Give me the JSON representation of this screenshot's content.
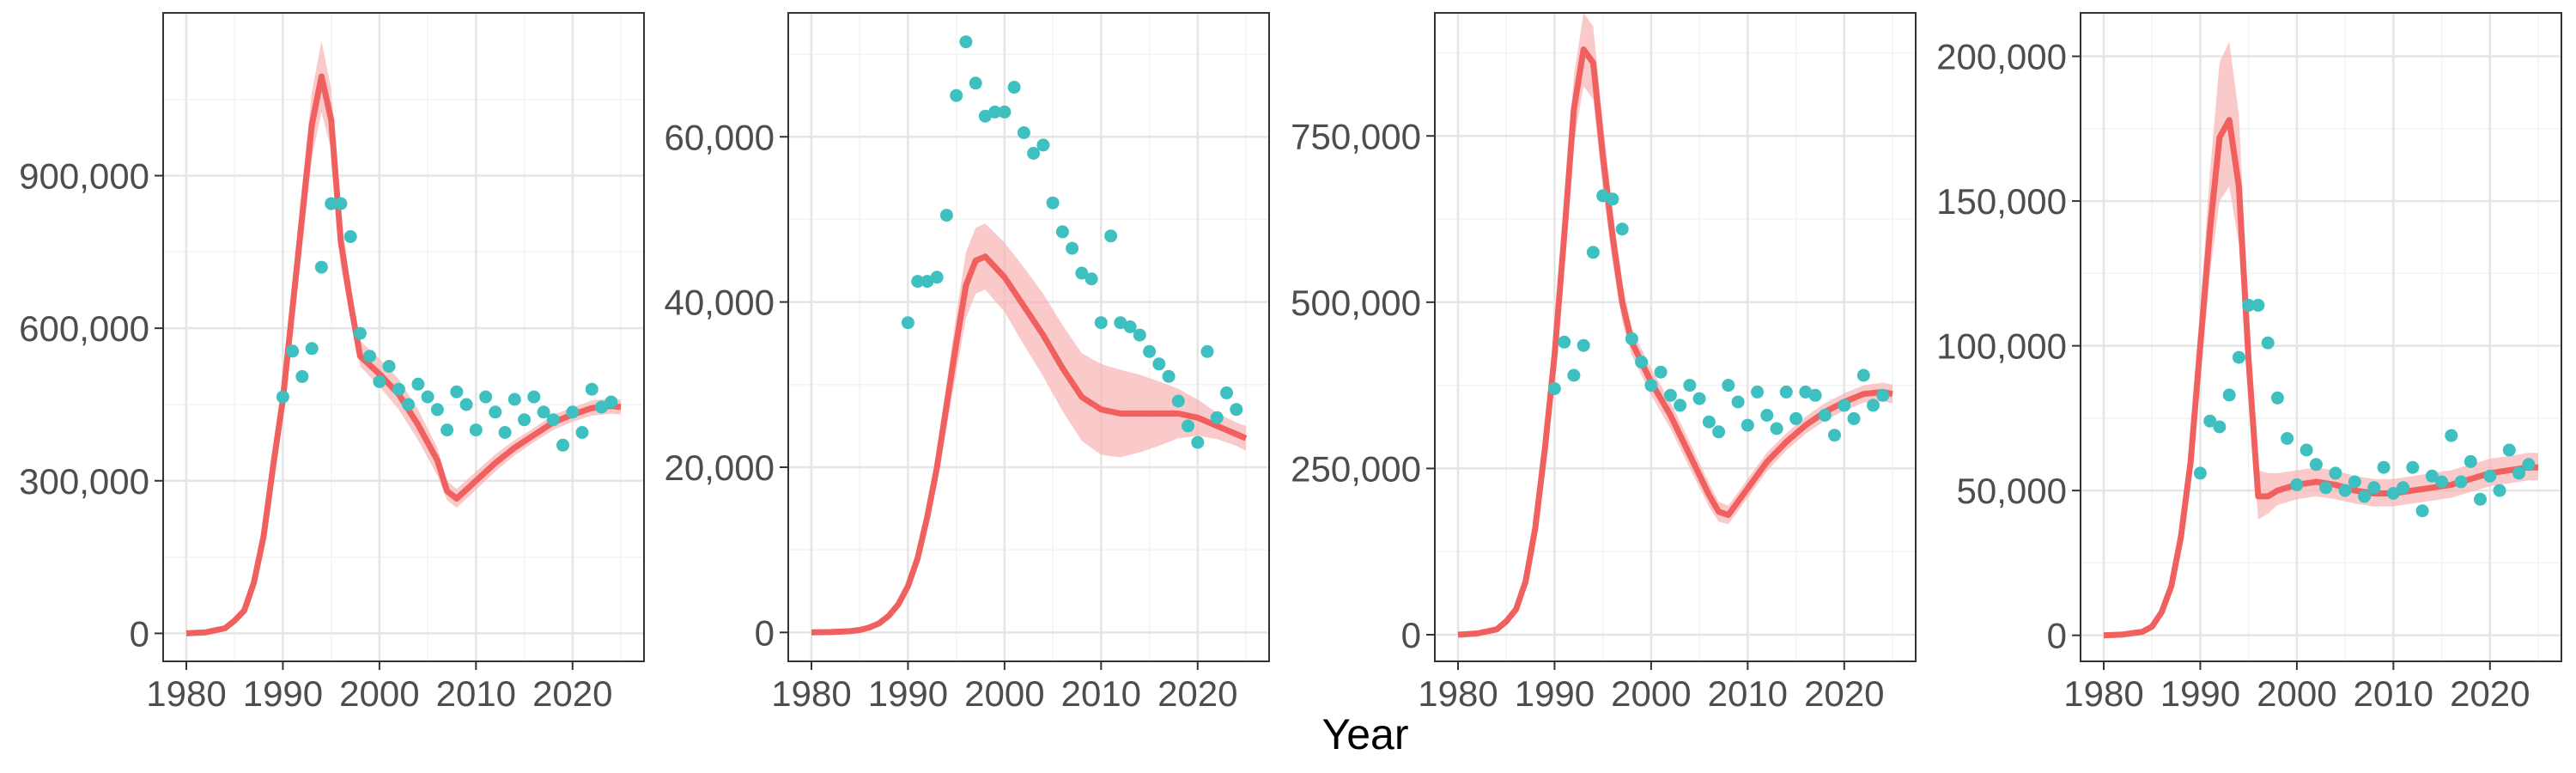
{
  "figure": {
    "xlabel": "Year"
  },
  "colors": {
    "model": "#F0605E",
    "band": "#F8B3B3",
    "observed": "#3EBFC0",
    "grid_major": "#E5E5E5",
    "grid_minor": "#F3F3F3",
    "frame": "#333333"
  },
  "chart_data": [
    {
      "type": "line",
      "xlim": [
        1977.6,
        2027.4
      ],
      "ylim": [
        -55000,
        1220000
      ],
      "xticks": [
        1980,
        1990,
        2000,
        2010,
        2020
      ],
      "yticks": [
        0,
        300000,
        600000,
        900000
      ],
      "ytick_labels": [
        "0",
        "300,000",
        "600,000",
        "900,000"
      ],
      "model": {
        "x": [
          1980,
          1982,
          1984,
          1985,
          1986,
          1987,
          1988,
          1989,
          1990,
          1991,
          1992,
          1993,
          1994,
          1995,
          1996,
          1997,
          1998,
          2000,
          2002,
          2004,
          2006,
          2007,
          2008,
          2010,
          2012,
          2014,
          2016,
          2018,
          2020,
          2022,
          2024,
          2025
        ],
        "y": [
          0,
          2000,
          10000,
          25000,
          45000,
          100000,
          190000,
          330000,
          460000,
          640000,
          820000,
          1000000,
          1095000,
          1010000,
          770000,
          650000,
          545000,
          510000,
          470000,
          410000,
          340000,
          280000,
          265000,
          300000,
          335000,
          365000,
          390000,
          415000,
          430000,
          443000,
          447000,
          445000
        ],
        "lower": [
          0,
          1800,
          9000,
          22000,
          40000,
          90000,
          172000,
          300000,
          420000,
          590000,
          760000,
          935000,
          1025000,
          950000,
          720000,
          620000,
          525000,
          485000,
          440000,
          380000,
          310000,
          262000,
          247000,
          282000,
          318000,
          350000,
          376000,
          400000,
          416000,
          428000,
          432000,
          430000
        ],
        "upper": [
          0,
          2200,
          11000,
          28000,
          50000,
          110000,
          208000,
          360000,
          500000,
          690000,
          880000,
          1065000,
          1165000,
          1070000,
          820000,
          685000,
          575000,
          540000,
          500000,
          440000,
          365000,
          300000,
          284000,
          318000,
          352000,
          380000,
          404000,
          430000,
          444000,
          458000,
          462000,
          460000
        ]
      },
      "observed": {
        "x": [
          1990,
          1991,
          1992,
          1993,
          1994,
          1995,
          1996,
          1997,
          1998,
          1999,
          2000,
          2001,
          2002,
          2003,
          2004,
          2005,
          2006,
          2007,
          2008,
          2009,
          2010,
          2011,
          2012,
          2013,
          2014,
          2015,
          2016,
          2017,
          2018,
          2019,
          2020,
          2021,
          2022,
          2023,
          2024
        ],
        "y": [
          465000,
          555000,
          505000,
          560000,
          720000,
          845000,
          845000,
          780000,
          590000,
          545000,
          495000,
          525000,
          480000,
          450000,
          490000,
          465000,
          440000,
          400000,
          475000,
          450000,
          400000,
          465000,
          435000,
          395000,
          460000,
          420000,
          465000,
          435000,
          420000,
          370000,
          435000,
          395000,
          480000,
          445000,
          455000
        ]
      }
    },
    {
      "type": "line",
      "xlim": [
        1977.6,
        2027.4
      ],
      "ylim": [
        -3500,
        75000
      ],
      "xticks": [
        1980,
        1990,
        2000,
        2010,
        2020
      ],
      "yticks": [
        0,
        20000,
        40000,
        60000
      ],
      "ytick_labels": [
        "0",
        "20,000",
        "40,000",
        "60,000"
      ],
      "model": {
        "x": [
          1980,
          1982,
          1984,
          1985,
          1986,
          1987,
          1988,
          1989,
          1990,
          1991,
          1992,
          1993,
          1994,
          1995,
          1996,
          1997,
          1998,
          2000,
          2002,
          2004,
          2006,
          2008,
          2010,
          2012,
          2014,
          2016,
          2018,
          2020,
          2022,
          2024,
          2025
        ],
        "y": [
          0,
          50,
          150,
          300,
          600,
          1100,
          2000,
          3400,
          5600,
          9000,
          14000,
          20000,
          27500,
          35000,
          42000,
          45000,
          45500,
          43000,
          39500,
          36000,
          32000,
          28500,
          27000,
          26500,
          26500,
          26500,
          26500,
          26000,
          25000,
          24000,
          23500
        ],
        "lower": [
          0,
          40,
          120,
          250,
          500,
          950,
          1750,
          3000,
          5000,
          8100,
          12600,
          18000,
          24800,
          31500,
          38000,
          41000,
          41500,
          38800,
          34800,
          31000,
          26800,
          23200,
          21500,
          21200,
          21800,
          22600,
          23500,
          23800,
          23400,
          22600,
          22000
        ],
        "upper": [
          0,
          60,
          180,
          350,
          700,
          1250,
          2250,
          3800,
          6200,
          9900,
          15400,
          22000,
          30200,
          38500,
          46000,
          49000,
          49500,
          47200,
          44200,
          41000,
          37200,
          33800,
          32500,
          31800,
          31200,
          30400,
          29500,
          28200,
          26600,
          25400,
          25000
        ]
      },
      "observed": {
        "x": [
          1990,
          1991,
          1992,
          1993,
          1994,
          1995,
          1996,
          1997,
          1998,
          1999,
          2000,
          2001,
          2002,
          2003,
          2004,
          2005,
          2006,
          2007,
          2008,
          2009,
          2010,
          2011,
          2012,
          2013,
          2014,
          2015,
          2016,
          2017,
          2018,
          2019,
          2020,
          2021,
          2022,
          2023,
          2024
        ],
        "y": [
          37500,
          42500,
          42500,
          43000,
          50500,
          65000,
          71500,
          66500,
          62500,
          63000,
          63000,
          66000,
          60500,
          58000,
          59000,
          52000,
          48500,
          46500,
          43500,
          42800,
          37500,
          48000,
          37500,
          37000,
          36000,
          34000,
          32500,
          31000,
          28000,
          25000,
          23000,
          34000,
          26000,
          29000,
          27000
        ]
      }
    },
    {
      "type": "line",
      "xlim": [
        1977.6,
        2027.4
      ],
      "ylim": [
        -40000,
        935000
      ],
      "xticks": [
        1980,
        1990,
        2000,
        2010,
        2020
      ],
      "yticks": [
        0,
        250000,
        500000,
        750000
      ],
      "ytick_labels": [
        "0",
        "250,000",
        "500,000",
        "750,000"
      ],
      "model": {
        "x": [
          1980,
          1982,
          1984,
          1985,
          1986,
          1987,
          1988,
          1989,
          1990,
          1991,
          1992,
          1993,
          1994,
          1995,
          1996,
          1997,
          1998,
          2000,
          2002,
          2004,
          2006,
          2007,
          2008,
          2010,
          2012,
          2014,
          2016,
          2018,
          2020,
          2022,
          2024,
          2025
        ],
        "y": [
          0,
          2000,
          8000,
          20000,
          38000,
          80000,
          160000,
          280000,
          420000,
          600000,
          790000,
          880000,
          860000,
          720000,
          600000,
          500000,
          440000,
          380000,
          330000,
          270000,
          210000,
          185000,
          180000,
          220000,
          260000,
          290000,
          315000,
          335000,
          350000,
          362000,
          365000,
          362000
        ],
        "lower": [
          0,
          1800,
          7200,
          18000,
          34000,
          72000,
          145000,
          255000,
          385000,
          555000,
          740000,
          825000,
          805000,
          670000,
          560000,
          470000,
          420000,
          360000,
          310000,
          250000,
          192000,
          170000,
          166000,
          206000,
          246000,
          277000,
          302000,
          322000,
          337000,
          349000,
          351000,
          348000
        ],
        "upper": [
          0,
          2200,
          8800,
          22000,
          42000,
          88000,
          175000,
          305000,
          455000,
          645000,
          840000,
          935000,
          915000,
          770000,
          640000,
          530000,
          460000,
          400000,
          350000,
          290000,
          228000,
          200000,
          194000,
          234000,
          274000,
          303000,
          328000,
          348000,
          363000,
          375000,
          379000,
          376000
        ]
      },
      "observed": {
        "x": [
          1990,
          1991,
          1992,
          1993,
          1994,
          1995,
          1996,
          1997,
          1998,
          1999,
          2000,
          2001,
          2002,
          2003,
          2004,
          2005,
          2006,
          2007,
          2008,
          2009,
          2010,
          2011,
          2012,
          2013,
          2014,
          2015,
          2016,
          2017,
          2018,
          2019,
          2020,
          2021,
          2022,
          2023,
          2024
        ],
        "y": [
          370000,
          440000,
          390000,
          435000,
          575000,
          660000,
          655000,
          610000,
          445000,
          410000,
          375000,
          395000,
          360000,
          345000,
          375000,
          355000,
          320000,
          305000,
          375000,
          350000,
          315000,
          365000,
          330000,
          310000,
          365000,
          325000,
          365000,
          360000,
          330000,
          300000,
          345000,
          325000,
          390000,
          345000,
          360000
        ]
      }
    },
    {
      "type": "line",
      "xlim": [
        1977.6,
        2027.4
      ],
      "ylim": [
        -9000,
        215000
      ],
      "xticks": [
        1980,
        1990,
        2000,
        2010,
        2020
      ],
      "yticks": [
        0,
        50000,
        100000,
        150000,
        200000
      ],
      "ytick_labels": [
        "0",
        "50,000",
        "100,000",
        "150,000",
        "200,000"
      ],
      "model": {
        "x": [
          1980,
          1982,
          1984,
          1985,
          1986,
          1987,
          1988,
          1989,
          1990,
          1991,
          1992,
          1993,
          1994,
          1995,
          1996,
          1997,
          1998,
          2000,
          2002,
          2004,
          2006,
          2008,
          2010,
          2012,
          2014,
          2016,
          2018,
          2020,
          2022,
          2024,
          2025
        ],
        "y": [
          0,
          300,
          1200,
          3000,
          8000,
          17000,
          34000,
          60000,
          100000,
          140000,
          172000,
          178000,
          155000,
          95000,
          48000,
          48000,
          50000,
          52000,
          53000,
          52000,
          50000,
          49000,
          49000,
          50000,
          51000,
          52000,
          54000,
          56000,
          57000,
          58000,
          58000
        ],
        "lower": [
          0,
          250,
          1000,
          2600,
          7000,
          15000,
          30000,
          53000,
          88000,
          125000,
          150000,
          155000,
          135000,
          82000,
          40000,
          42000,
          45000,
          47000,
          48000,
          47000,
          45500,
          44500,
          44500,
          45500,
          46500,
          47500,
          49500,
          51500,
          52500,
          53500,
          53500
        ],
        "upper": [
          0,
          350,
          1400,
          3400,
          9000,
          19000,
          38000,
          67000,
          112000,
          160000,
          198000,
          205000,
          180000,
          110000,
          57000,
          56000,
          56000,
          57000,
          58000,
          57000,
          55000,
          54000,
          54000,
          55000,
          56000,
          57000,
          59000,
          61000,
          62000,
          63000,
          63000
        ]
      },
      "observed": {
        "x": [
          1990,
          1991,
          1992,
          1993,
          1994,
          1995,
          1996,
          1997,
          1998,
          1999,
          2000,
          2001,
          2002,
          2003,
          2004,
          2005,
          2006,
          2007,
          2008,
          2009,
          2010,
          2011,
          2012,
          2013,
          2014,
          2015,
          2016,
          2017,
          2018,
          2019,
          2020,
          2021,
          2022,
          2023,
          2024
        ],
        "y": [
          56000,
          74000,
          72000,
          83000,
          96000,
          114000,
          114000,
          101000,
          82000,
          68000,
          52000,
          64000,
          59000,
          51000,
          56000,
          50000,
          53000,
          48000,
          51000,
          58000,
          49000,
          51000,
          58000,
          43000,
          55000,
          53000,
          69000,
          53000,
          60000,
          47000,
          55000,
          50000,
          64000,
          56000,
          59000
        ]
      }
    }
  ]
}
